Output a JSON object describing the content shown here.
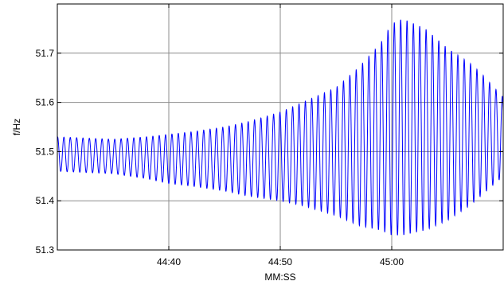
{
  "chart_data": {
    "type": "line",
    "title": "",
    "xlabel": "MM:SS",
    "ylabel": "f/Hz",
    "x_unit": "MM:SS",
    "xlim": [
      "44:30",
      "45:10"
    ],
    "ylim": [
      51.3,
      51.8
    ],
    "grid": true,
    "legend": "none",
    "x_ticks": [
      "44:40",
      "44:50",
      "45:00"
    ],
    "y_ticks": [
      "51.3",
      "51.4",
      "51.5",
      "51.6",
      "51.7"
    ],
    "oscillation_period_s": 0.57,
    "envelope": {
      "x": [
        "44:30",
        "44:35",
        "44:38",
        "44:40",
        "44:42",
        "44:45",
        "44:47",
        "44:50",
        "44:52",
        "44:55",
        "44:57",
        "44:59",
        "45:00",
        "45:01",
        "45:03",
        "45:05",
        "45:07",
        "45:08",
        "45:10"
      ],
      "max": [
        51.53,
        51.525,
        51.53,
        51.535,
        51.54,
        51.55,
        51.56,
        51.58,
        51.6,
        51.63,
        51.67,
        51.72,
        51.76,
        51.77,
        51.75,
        51.71,
        51.68,
        51.66,
        51.61
      ],
      "min": [
        51.46,
        51.455,
        51.445,
        51.435,
        51.43,
        51.42,
        51.41,
        51.4,
        51.39,
        51.37,
        51.35,
        51.34,
        51.33,
        51.33,
        51.34,
        51.36,
        51.39,
        51.41,
        51.45
      ]
    },
    "series": [
      {
        "color": "#0000ff"
      }
    ]
  }
}
